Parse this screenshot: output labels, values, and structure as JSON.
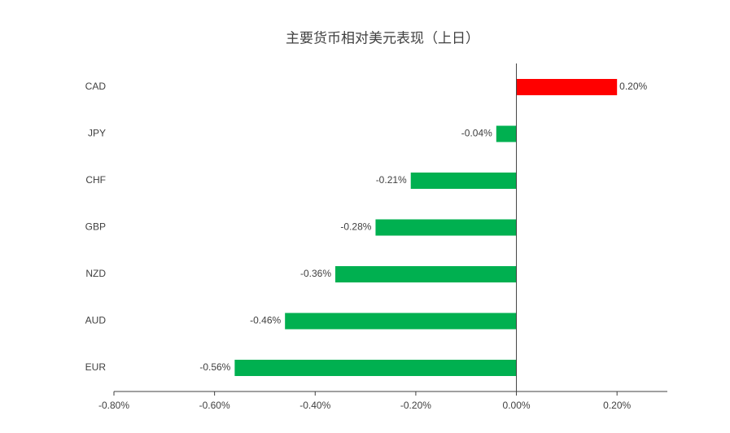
{
  "chart_data": {
    "type": "hbar",
    "title": "主要货币相对美元表现（上日）",
    "categories": [
      "CAD",
      "JPY",
      "CHF",
      "GBP",
      "NZD",
      "AUD",
      "EUR"
    ],
    "values": [
      0.2,
      -0.04,
      -0.21,
      -0.28,
      -0.36,
      -0.46,
      -0.56
    ],
    "value_labels": [
      "0.20%",
      "-0.04%",
      "-0.21%",
      "-0.28%",
      "-0.36%",
      "-0.46%",
      "-0.56%"
    ],
    "positive_color": "#ff0000",
    "negative_color": "#00b050",
    "xlim": [
      -0.8,
      0.3
    ],
    "xticks": [
      {
        "value": -0.8,
        "label": "-0.80%"
      },
      {
        "value": -0.6,
        "label": "-0.60%"
      },
      {
        "value": -0.4,
        "label": "-0.40%"
      },
      {
        "value": -0.2,
        "label": "-0.20%"
      },
      {
        "value": 0,
        "label": "0.00%"
      },
      {
        "value": 0.2,
        "label": "0.20%"
      }
    ],
    "grid": false
  }
}
